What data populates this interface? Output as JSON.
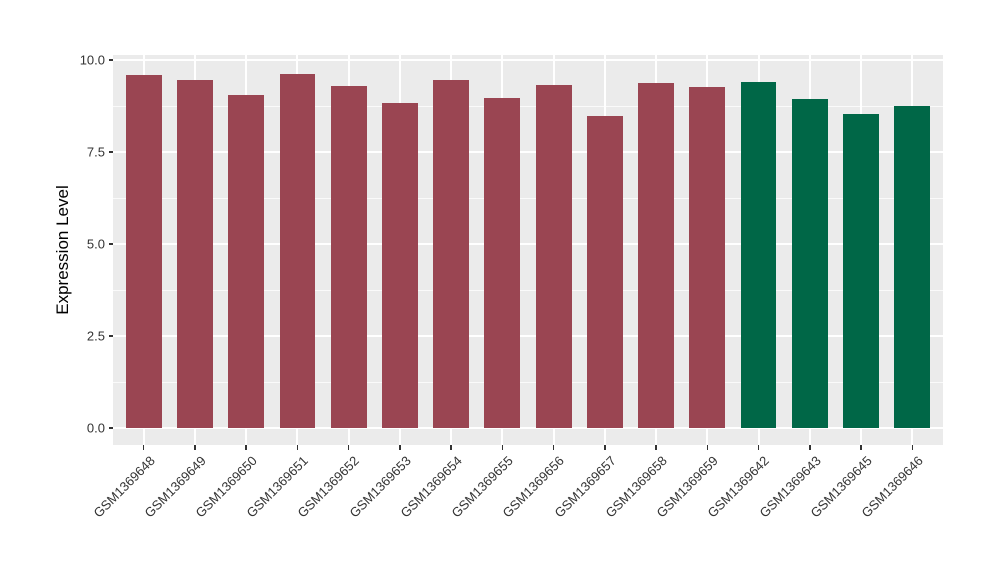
{
  "chart_data": {
    "type": "bar",
    "title": "",
    "xlabel": "",
    "ylabel": "Expression Level",
    "categories": [
      "GSM1369648",
      "GSM1369649",
      "GSM1369650",
      "GSM1369651",
      "GSM1369652",
      "GSM1369653",
      "GSM1369654",
      "GSM1369655",
      "GSM1369656",
      "GSM1369657",
      "GSM1369658",
      "GSM1369659",
      "GSM1369642",
      "GSM1369643",
      "GSM1369645",
      "GSM1369646"
    ],
    "values": [
      9.58,
      9.45,
      9.05,
      9.61,
      9.29,
      8.82,
      9.46,
      8.97,
      9.31,
      8.47,
      9.37,
      9.27,
      9.39,
      8.95,
      8.52,
      8.75
    ],
    "bar_groups": [
      0,
      0,
      0,
      0,
      0,
      0,
      0,
      0,
      0,
      0,
      0,
      0,
      1,
      1,
      1,
      1
    ],
    "group_colors": [
      "#9A4552",
      "#006747"
    ],
    "yticks": [
      0,
      2.5,
      5,
      7.5,
      10
    ],
    "ytick_labels": [
      "0.0",
      "2.5",
      "5.0",
      "7.5",
      "10.0"
    ],
    "yticks_minor": [
      1.25,
      3.75,
      6.25,
      8.75
    ],
    "ylim": [
      -0.46,
      10.14
    ],
    "grid": "major+minor horizontal, major vertical at category centers",
    "legend": "none",
    "panel_background": "#EBEBEB",
    "gridline_color": "#FFFFFF",
    "axis_text_color": "#333333"
  }
}
